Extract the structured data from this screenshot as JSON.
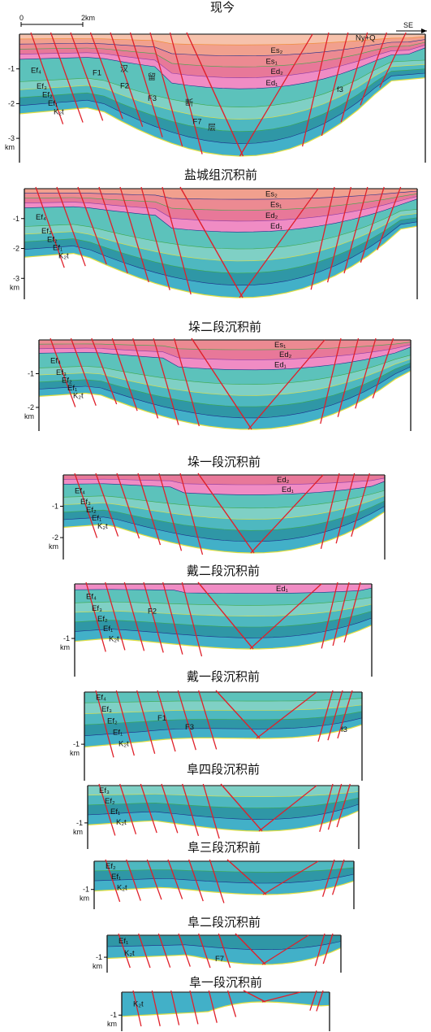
{
  "palette": {
    "nyq": "#f6c2ac",
    "es2": "#f1a08e",
    "es1": "#ec8a92",
    "ed2": "#e87899",
    "ed1": "#f08cc4",
    "ef4": "#5cc2bb",
    "ef3": "#7fd0c5",
    "ef2": "#4eb8c0",
    "ef1": "#2f97a6",
    "k2t": "#42b0c8",
    "fault": "#e0202a",
    "line_green": "#3ea84a",
    "line_navy": "#1c2b8a",
    "line_yellow": "#e4e040",
    "line_orange": "#f08a2c",
    "line_purple": "#8a3aa6"
  },
  "scale_bar": {
    "start": "0",
    "end": "2km"
  },
  "direction_label": "SE",
  "sections": [
    {
      "id": "present",
      "title": "现今",
      "depth_ticks": [
        "-1",
        "-2",
        "-3"
      ],
      "unit": "km",
      "unit_labels": [
        "Ny+Q",
        "Es₂",
        "Es₁",
        "Ed₂",
        "Ed₁",
        "Ef₄",
        "Ef₃",
        "Ef₂",
        "Ef₁",
        "K₂t"
      ],
      "fault_labels": [
        "F1",
        "F2",
        "F3",
        "F7",
        "f3"
      ],
      "sag_chars": [
        "汉",
        "留",
        "断",
        "层"
      ]
    },
    {
      "id": "pre-yancheng",
      "title": "盐城组沉积前",
      "depth_ticks": [
        "-1",
        "-2",
        "-3"
      ],
      "unit": "km",
      "unit_labels": [
        "Es₂",
        "Es₁",
        "Ed₂",
        "Ed₁",
        "Ef₄",
        "Ef₃",
        "Ef₂",
        "Ef₁",
        "K₂t"
      ]
    },
    {
      "id": "pre-duo2",
      "title": "垛二段沉积前",
      "depth_ticks": [
        "-1",
        "-2"
      ],
      "unit": "km",
      "unit_labels": [
        "Es₁",
        "Ed₂",
        "Ed₁",
        "Ef₄",
        "Ef₃",
        "Ef₂",
        "Ef₁",
        "K₂t"
      ]
    },
    {
      "id": "pre-duo1",
      "title": "垛一段沉积前",
      "depth_ticks": [
        "-1",
        "-2"
      ],
      "unit": "km",
      "unit_labels": [
        "Ed₂",
        "Ed₁",
        "Ef₄",
        "Ef₃",
        "Ef₂",
        "Ef₁",
        "K₂t"
      ]
    },
    {
      "id": "pre-dai2",
      "title": "戴二段沉积前",
      "depth_ticks": [
        "-1"
      ],
      "unit": "km",
      "unit_labels": [
        "Ed₁",
        "Ef₄",
        "Ef₃",
        "Ef₂",
        "Ef₁",
        "K₂t"
      ],
      "fault_labels": [
        "F2"
      ]
    },
    {
      "id": "pre-dai1",
      "title": "戴一段沉积前",
      "depth_ticks": [
        "-1"
      ],
      "unit": "km",
      "unit_labels": [
        "Ef₄",
        "Ef₃",
        "Ef₂",
        "Ef₁",
        "K₂t"
      ],
      "fault_labels": [
        "F1",
        "F3",
        "f3"
      ]
    },
    {
      "id": "pre-fu4",
      "title": "阜四段沉积前",
      "depth_ticks": [
        "-1"
      ],
      "unit": "km",
      "unit_labels": [
        "Ef₃",
        "Ef₂",
        "Ef₁",
        "K₂t"
      ]
    },
    {
      "id": "pre-fu3",
      "title": "阜三段沉积前",
      "depth_ticks": [
        "-1"
      ],
      "unit": "km",
      "unit_labels": [
        "Ef₂",
        "Ef₁",
        "K₂t"
      ]
    },
    {
      "id": "pre-fu2",
      "title": "阜二段沉积前",
      "depth_ticks": [
        "-1"
      ],
      "unit": "km",
      "unit_labels": [
        "Ef₁",
        "K₂t"
      ],
      "fault_labels": [
        "F7"
      ]
    },
    {
      "id": "pre-fu1",
      "title": "阜一段沉积前",
      "depth_ticks": [
        "-1"
      ],
      "unit": "km",
      "unit_labels": [
        "K₂t"
      ]
    }
  ]
}
